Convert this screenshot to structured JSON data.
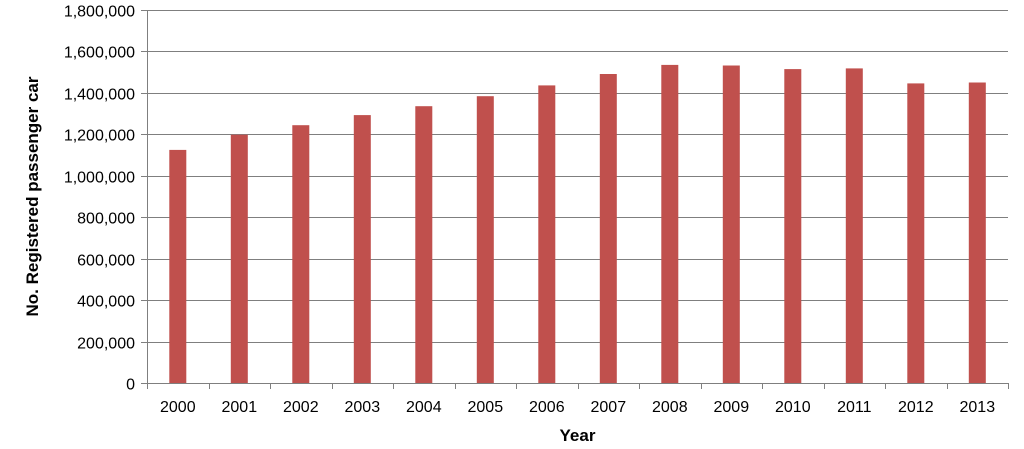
{
  "chart_data": {
    "type": "bar",
    "title": "",
    "xlabel": "Year",
    "ylabel": "No. Registered passenger car",
    "categories": [
      "2000",
      "2001",
      "2002",
      "2003",
      "2004",
      "2005",
      "2006",
      "2007",
      "2008",
      "2009",
      "2010",
      "2011",
      "2012",
      "2013"
    ],
    "series": [
      {
        "values": [
          1125000,
          1198000,
          1244000,
          1293000,
          1336000,
          1384000,
          1436000,
          1491000,
          1535000,
          1532000,
          1515000,
          1518000,
          1446000,
          1450000
        ]
      }
    ],
    "ylim": [
      0,
      1800000
    ],
    "yticks": [
      0,
      200000,
      400000,
      600000,
      800000,
      1000000,
      1200000,
      1400000,
      1600000,
      1800000
    ],
    "ytick_labels": [
      "0",
      "200,000",
      "400,000",
      "600,000",
      "800,000",
      "1,000,000",
      "1,200,000",
      "1,400,000",
      "1,600,000",
      "1,800,000"
    ],
    "grid": true,
    "legend": "none",
    "bar_color": "#c0504d",
    "grid_color": "#7f7f7f"
  }
}
